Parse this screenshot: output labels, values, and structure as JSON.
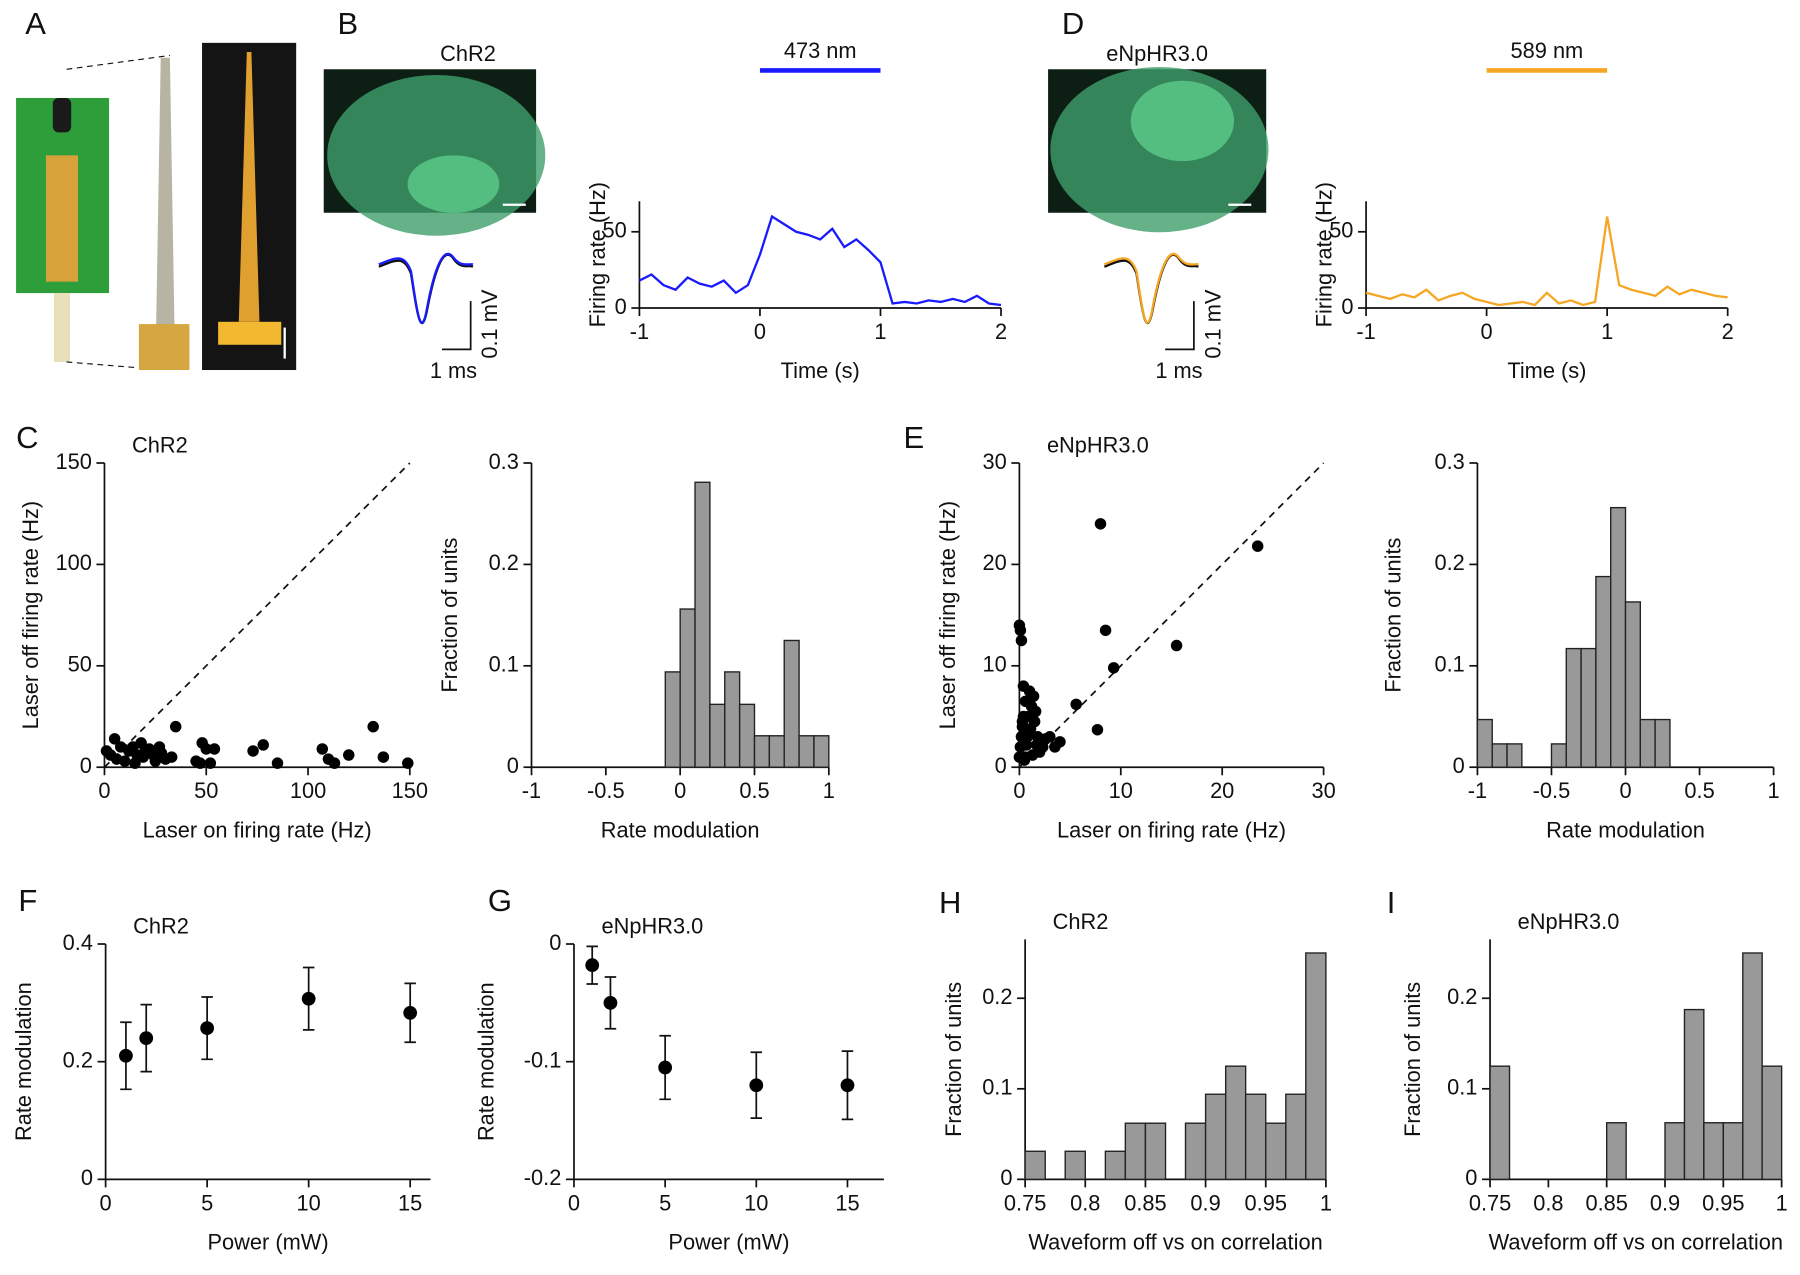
{
  "panel_labels": [
    "A",
    "B",
    "C",
    "D",
    "E",
    "F",
    "G",
    "H",
    "I"
  ],
  "chart_data": [
    {
      "type": "line",
      "image_label": "ChR2",
      "color": "#1a1aff",
      "stimulus": {
        "label": "473 nm",
        "range": [
          0,
          1
        ],
        "color": "#1a1aff"
      },
      "waveform_scale": [
        "1 ms",
        "0.1 mV"
      ],
      "x": [
        -1,
        -0.9,
        -0.8,
        -0.7,
        -0.6,
        -0.5,
        -0.4,
        -0.3,
        -0.2,
        -0.1,
        0,
        0.1,
        0.2,
        0.3,
        0.4,
        0.5,
        0.6,
        0.7,
        0.8,
        0.9,
        1,
        1.1,
        1.2,
        1.3,
        1.4,
        1.5,
        1.6,
        1.7,
        1.8,
        1.9,
        2
      ],
      "values": [
        18,
        22,
        15,
        12,
        20,
        16,
        14,
        18,
        10,
        15,
        35,
        60,
        55,
        50,
        48,
        45,
        52,
        40,
        45,
        38,
        30,
        3,
        4,
        3,
        5,
        4,
        6,
        4,
        8,
        3,
        2
      ],
      "xlim": [
        -1,
        2
      ],
      "ylim": [
        0,
        70
      ],
      "xticks": [
        -1,
        0,
        1,
        2
      ],
      "yticks": [
        0,
        50
      ],
      "xlabel": "Time (s)",
      "ylabel": "Firing rate (Hz)"
    },
    {
      "type": "line",
      "image_label": "eNpHR3.0",
      "color": "#f5a623",
      "stimulus": {
        "label": "589 nm",
        "range": [
          0,
          1
        ],
        "color": "#f5a623"
      },
      "waveform_scale": [
        "1 ms",
        "0.1 mV"
      ],
      "x": [
        -1,
        -0.9,
        -0.8,
        -0.7,
        -0.6,
        -0.5,
        -0.4,
        -0.3,
        -0.2,
        -0.1,
        0,
        0.1,
        0.2,
        0.3,
        0.4,
        0.5,
        0.6,
        0.7,
        0.8,
        0.9,
        1,
        1.1,
        1.2,
        1.3,
        1.4,
        1.5,
        1.6,
        1.7,
        1.8,
        1.9,
        2
      ],
      "values": [
        10,
        8,
        6,
        9,
        7,
        12,
        5,
        8,
        10,
        6,
        4,
        2,
        3,
        4,
        2,
        10,
        3,
        5,
        2,
        4,
        60,
        15,
        12,
        10,
        8,
        14,
        9,
        12,
        10,
        8,
        7
      ],
      "xlim": [
        -1,
        2
      ],
      "ylim": [
        0,
        70
      ],
      "xticks": [
        -1,
        0,
        1,
        2
      ],
      "yticks": [
        0,
        50
      ],
      "xlabel": "Time (s)",
      "ylabel": "Firing rate (Hz)"
    },
    {
      "type": "scatter",
      "title": "ChR2",
      "identity_line": true,
      "color": "#000000",
      "x": [
        1,
        3,
        5,
        6,
        8,
        10,
        12,
        14,
        15,
        16,
        18,
        19,
        20,
        22,
        24,
        25,
        27,
        28,
        30,
        33,
        35,
        45,
        47,
        48,
        50,
        52,
        54,
        73,
        78,
        85,
        107,
        110,
        113,
        120,
        132,
        137,
        149
      ],
      "values": [
        8,
        6,
        14,
        4,
        10,
        3,
        8,
        10,
        2,
        6,
        12,
        5,
        8,
        9,
        6,
        3,
        10,
        7,
        4,
        5,
        20,
        3,
        2,
        12,
        9,
        2,
        9,
        8,
        11,
        2,
        9,
        4,
        2,
        6,
        20,
        5,
        2
      ],
      "xlim": [
        0,
        150
      ],
      "ylim": [
        0,
        150
      ],
      "xticks": [
        0,
        50,
        100,
        150
      ],
      "yticks": [
        0,
        50,
        100,
        150
      ],
      "xlabel": "Laser on firing rate (Hz)",
      "ylabel": "Laser off firing rate (Hz)"
    },
    {
      "type": "histogram",
      "color": "#999999",
      "bins": [
        -0.1,
        0,
        0.1,
        0.2,
        0.3,
        0.4,
        0.5,
        0.6,
        0.7,
        0.8,
        0.9,
        1
      ],
      "values": [
        0.094,
        0.156,
        0.281,
        0.062,
        0.094,
        0.062,
        0.031,
        0.031,
        0.125,
        0.031,
        0.031
      ],
      "xlim": [
        -1,
        1
      ],
      "ylim": [
        0,
        0.3
      ],
      "xticks": [
        -1,
        -0.5,
        0,
        0.5,
        1
      ],
      "yticks": [
        0,
        0.1,
        0.2,
        0.3
      ],
      "xlabel": "Rate modulation",
      "ylabel": "Fraction of units"
    },
    {
      "type": "scatter",
      "title": "eNpHR3.0",
      "identity_line": true,
      "color": "#000000",
      "x": [
        0,
        0.2,
        0.1,
        0,
        0.1,
        0.2,
        0.3,
        0.4,
        0.5,
        0.6,
        0.8,
        1,
        1.2,
        1.4,
        1.5,
        1.6,
        1.8,
        2,
        2.3,
        3,
        3.5,
        4,
        5.6,
        7.7,
        8,
        8.5,
        9.3,
        15.5,
        23.5,
        0.5,
        0.3,
        1.1,
        0.7,
        0.9,
        1.3,
        0.4,
        0.6,
        2.6,
        1.7
      ],
      "values": [
        14,
        12.5,
        13.5,
        1,
        2,
        3,
        4,
        5,
        2.5,
        1,
        3,
        7.5,
        6,
        7,
        4.5,
        5.5,
        3,
        1.5,
        2,
        3,
        2,
        2.5,
        6.2,
        3.7,
        24,
        13.5,
        9.8,
        12,
        21.8,
        0.7,
        4.5,
        3.8,
        2.2,
        5,
        1.2,
        8,
        6.5,
        2.8,
        2.2
      ],
      "xlim": [
        0,
        30
      ],
      "ylim": [
        0,
        30
      ],
      "xticks": [
        0,
        10,
        20,
        30
      ],
      "yticks": [
        0,
        10,
        20,
        30
      ],
      "xlabel": "Laser on firing rate (Hz)",
      "ylabel": "Laser off firing rate (Hz)"
    },
    {
      "type": "histogram",
      "color": "#999999",
      "bins": [
        -1,
        -0.9,
        -0.8,
        -0.7,
        -0.6,
        -0.5,
        -0.4,
        -0.3,
        -0.2,
        -0.1,
        0,
        0.1,
        0.2,
        0.3
      ],
      "values": [
        0.047,
        0.023,
        0.023,
        0,
        0,
        0.023,
        0.117,
        0.117,
        0.188,
        0.256,
        0.163,
        0.047,
        0.047
      ],
      "xlim": [
        -1,
        1
      ],
      "ylim": [
        0,
        0.3
      ],
      "xticks": [
        -1,
        -0.5,
        0,
        0.5,
        1
      ],
      "yticks": [
        0,
        0.1,
        0.2,
        0.3
      ],
      "xlabel": "Rate modulation",
      "ylabel": "Fraction of units"
    },
    {
      "type": "errorbar",
      "title": "ChR2",
      "color": "#000000",
      "x": [
        1,
        2,
        5,
        10,
        15
      ],
      "values": [
        0.21,
        0.24,
        0.257,
        0.307,
        0.283
      ],
      "errors": [
        0.057,
        0.057,
        0.053,
        0.053,
        0.05
      ],
      "xlim": [
        0,
        16
      ],
      "ylim": [
        0,
        0.4
      ],
      "xticks": [
        0,
        5,
        10,
        15
      ],
      "yticks": [
        0,
        0.2,
        0.4
      ],
      "xlabel": "Power (mW)",
      "ylabel": "Rate modulation"
    },
    {
      "type": "errorbar",
      "title": "eNpHR3.0",
      "color": "#000000",
      "x": [
        1,
        2,
        5,
        10,
        15
      ],
      "values": [
        -0.018,
        -0.05,
        -0.105,
        -0.12,
        -0.12
      ],
      "errors": [
        0.016,
        0.022,
        0.027,
        0.028,
        0.029
      ],
      "xlim": [
        0,
        17
      ],
      "ylim": [
        -0.2,
        0
      ],
      "xticks": [
        0,
        5,
        10,
        15
      ],
      "yticks": [
        -0.2,
        -0.1,
        0
      ],
      "xlabel": "Power (mW)",
      "ylabel": "Rate modulation"
    },
    {
      "type": "histogram",
      "title": "ChR2",
      "color": "#999999",
      "bins": [
        0.75,
        0.7667,
        0.7833,
        0.8,
        0.8167,
        0.8333,
        0.85,
        0.8667,
        0.8833,
        0.9,
        0.9167,
        0.9333,
        0.95,
        0.9667,
        0.9833,
        1
      ],
      "values": [
        0.031,
        0,
        0.031,
        0,
        0.031,
        0.062,
        0.062,
        0,
        0.062,
        0.094,
        0.125,
        0.094,
        0.062,
        0.094,
        0.25
      ],
      "xlim": [
        0.75,
        1
      ],
      "ylim": [
        0,
        0.265
      ],
      "xticks": [
        0.75,
        0.8,
        0.85,
        0.9,
        0.95,
        1
      ],
      "yticks": [
        0,
        0.1,
        0.2
      ],
      "xlabel": "Waveform off vs on correlation",
      "ylabel": "Fraction of units"
    },
    {
      "type": "histogram",
      "title": "eNpHR3.0",
      "color": "#999999",
      "bins": [
        0.75,
        0.7667,
        0.7833,
        0.8,
        0.8167,
        0.8333,
        0.85,
        0.8667,
        0.8833,
        0.9,
        0.9167,
        0.9333,
        0.95,
        0.9667,
        0.9833,
        1
      ],
      "values": [
        0.125,
        0,
        0,
        0,
        0,
        0,
        0.0625,
        0,
        0,
        0.0625,
        0.1875,
        0.0625,
        0.0625,
        0.25,
        0.125
      ],
      "xlim": [
        0.75,
        1
      ],
      "ylim": [
        0,
        0.265
      ],
      "xticks": [
        0.75,
        0.8,
        0.85,
        0.9,
        0.95,
        1
      ],
      "yticks": [
        0,
        0.1,
        0.2
      ],
      "xlabel": "Waveform off vs on correlation",
      "ylabel": "Fraction of units"
    }
  ]
}
